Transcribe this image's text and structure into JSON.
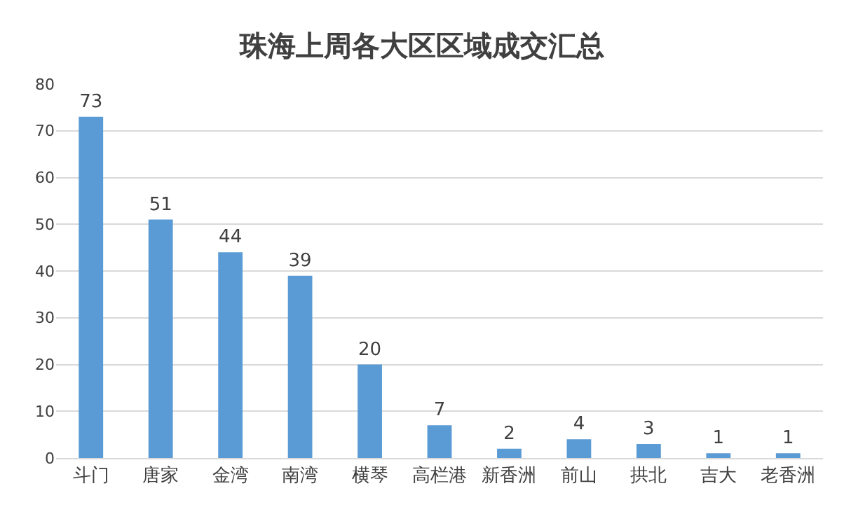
{
  "chart_data": {
    "type": "bar",
    "title": "珠海上周各大区区域成交汇总",
    "categories": [
      "斗门",
      "唐家",
      "金湾",
      "南湾",
      "横琴",
      "高栏港",
      "新香洲",
      "前山",
      "拱北",
      "吉大",
      "老香洲"
    ],
    "values": [
      73,
      51,
      44,
      39,
      20,
      7,
      2,
      4,
      3,
      1,
      1
    ],
    "color": "#5b9bd5",
    "ylim": [
      0,
      80
    ],
    "yticks": [
      0,
      10,
      20,
      30,
      40,
      50,
      60,
      70,
      80
    ],
    "grid": "y",
    "data_labels": true
  }
}
